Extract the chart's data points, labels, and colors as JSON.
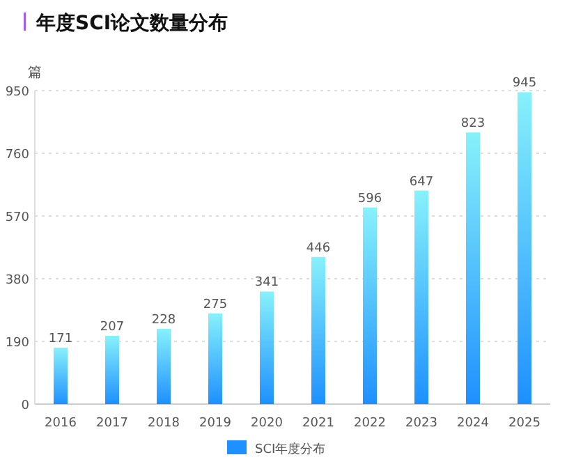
{
  "chart_data": {
    "type": "bar",
    "title": "年度SCI论文数量分布",
    "ylabel": "篇",
    "categories": [
      "2016",
      "2017",
      "2018",
      "2019",
      "2020",
      "2021",
      "2022",
      "2023",
      "2024",
      "2025"
    ],
    "series": [
      {
        "name": "SCI年度分布",
        "color": "#1e90ff",
        "values": [
          171,
          207,
          228,
          275,
          341,
          446,
          596,
          647,
          823,
          945
        ]
      }
    ],
    "ylim": [
      0,
      950
    ],
    "yticks": [
      0,
      190,
      380,
      570,
      760,
      950
    ],
    "grid": "y",
    "legend": "bottom",
    "data_labels": true
  }
}
